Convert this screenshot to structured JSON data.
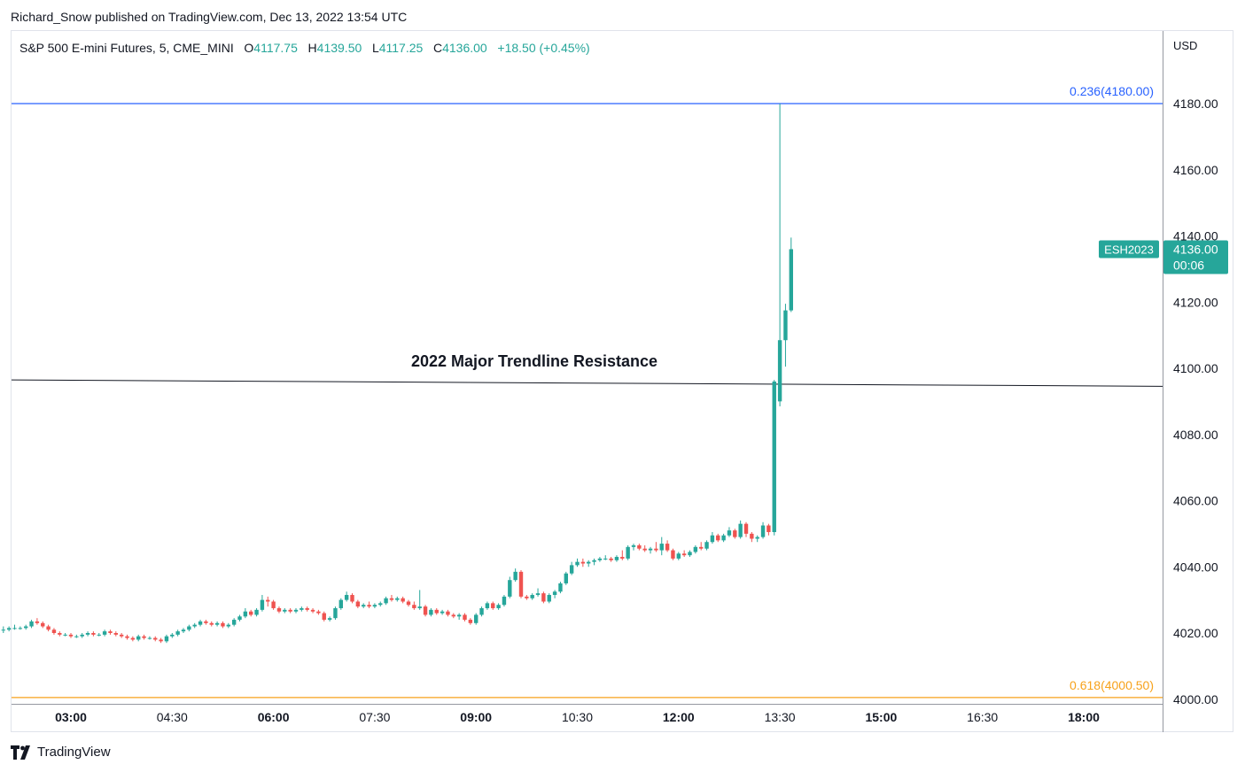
{
  "publish_line": "Richard_Snow published on TradingView.com, Dec 13, 2022 13:54 UTC",
  "legend": {
    "symbol": "S&P 500 E-mini Futures, 5, CME_MINI",
    "open_label": "O",
    "open": "4117.75",
    "high_label": "H",
    "high": "4139.50",
    "low_label": "L",
    "low": "4117.25",
    "close_label": "C",
    "close": "4136.00",
    "change": "+18.50 (+0.45%)"
  },
  "currency": "USD",
  "branding": "TradingView",
  "colors": {
    "up": "#26a69a",
    "down": "#ef5350",
    "fib_236": "#2962ff",
    "fib_618": "#f7a21b",
    "trendline": "#131722",
    "last_price_bg": "#26a69a"
  },
  "chart_data": {
    "type": "candlestick",
    "symbol": "ESH2023",
    "interval_minutes": 5,
    "y_axis": {
      "min": 4000,
      "max": 4180,
      "ticks": [
        4000,
        4020,
        4040,
        4060,
        4080,
        4100,
        4120,
        4140,
        4160,
        4180
      ],
      "tick_labels": [
        "4000.00",
        "4020.00",
        "4040.00",
        "4060.00",
        "4080.00",
        "4100.00",
        "4120.00",
        "4140.00",
        "4160.00",
        "4180.00"
      ]
    },
    "x_axis": {
      "tick_labels": [
        "03:00",
        "04:30",
        "06:00",
        "07:30",
        "09:00",
        "10:30",
        "12:00",
        "13:30",
        "15:00",
        "16:30",
        "18:00"
      ],
      "bold": [
        "03:00",
        "06:00",
        "09:00",
        "12:00",
        "15:00",
        "18:00"
      ]
    },
    "last_price": {
      "symbol": "ESH2023",
      "price": "4136.00",
      "countdown": "00:06",
      "value": 4136.0
    },
    "fib_levels": [
      {
        "label": "0.236(4180.00)",
        "value": 4180.0,
        "color": "#2962ff"
      },
      {
        "label": "0.618(4000.50)",
        "value": 4000.5,
        "color": "#f7a21b"
      }
    ],
    "trendline": {
      "label": "2022 Major Trendline Resistance",
      "start": [
        "02:00",
        4096.5
      ],
      "end": [
        "17:00",
        4094.8
      ]
    },
    "candles": [
      {
        "t": "02:00",
        "o": 4021.0,
        "h": 4022.0,
        "l": 4020.0,
        "c": 4021.0
      },
      {
        "t": "02:05",
        "o": 4021.0,
        "h": 4022.0,
        "l": 4020.5,
        "c": 4021.5
      },
      {
        "t": "02:10",
        "o": 4021.5,
        "h": 4022.5,
        "l": 4021.0,
        "c": 4021.5
      },
      {
        "t": "02:15",
        "o": 4021.5,
        "h": 4022.0,
        "l": 4021.0,
        "c": 4021.5
      },
      {
        "t": "02:20",
        "o": 4021.5,
        "h": 4022.5,
        "l": 4021.0,
        "c": 4022.0
      },
      {
        "t": "02:25",
        "o": 4022.0,
        "h": 4024.0,
        "l": 4021.5,
        "c": 4023.5
      },
      {
        "t": "02:30",
        "o": 4023.5,
        "h": 4024.5,
        "l": 4022.5,
        "c": 4023.0
      },
      {
        "t": "02:35",
        "o": 4023.0,
        "h": 4023.5,
        "l": 4021.5,
        "c": 4022.0
      },
      {
        "t": "02:40",
        "o": 4022.0,
        "h": 4022.5,
        "l": 4020.5,
        "c": 4021.0
      },
      {
        "t": "02:45",
        "o": 4021.0,
        "h": 4021.5,
        "l": 4019.5,
        "c": 4020.0
      },
      {
        "t": "02:50",
        "o": 4020.0,
        "h": 4020.5,
        "l": 4019.0,
        "c": 4019.5
      },
      {
        "t": "02:55",
        "o": 4019.5,
        "h": 4020.0,
        "l": 4019.0,
        "c": 4019.5
      },
      {
        "t": "03:00",
        "o": 4019.5,
        "h": 4020.0,
        "l": 4018.5,
        "c": 4019.0
      },
      {
        "t": "03:05",
        "o": 4019.0,
        "h": 4019.5,
        "l": 4018.5,
        "c": 4019.0
      },
      {
        "t": "03:10",
        "o": 4019.0,
        "h": 4020.0,
        "l": 4018.5,
        "c": 4019.5
      },
      {
        "t": "03:15",
        "o": 4019.5,
        "h": 4020.5,
        "l": 4019.0,
        "c": 4020.0
      },
      {
        "t": "03:20",
        "o": 4020.0,
        "h": 4020.5,
        "l": 4019.0,
        "c": 4019.5
      },
      {
        "t": "03:25",
        "o": 4019.5,
        "h": 4020.0,
        "l": 4019.0,
        "c": 4019.5
      },
      {
        "t": "03:30",
        "o": 4019.5,
        "h": 4021.0,
        "l": 4019.0,
        "c": 4020.5
      },
      {
        "t": "03:35",
        "o": 4020.5,
        "h": 4021.0,
        "l": 4019.5,
        "c": 4020.0
      },
      {
        "t": "03:40",
        "o": 4020.0,
        "h": 4020.5,
        "l": 4019.0,
        "c": 4019.5
      },
      {
        "t": "03:45",
        "o": 4019.5,
        "h": 4020.0,
        "l": 4018.5,
        "c": 4019.0
      },
      {
        "t": "03:50",
        "o": 4019.0,
        "h": 4019.5,
        "l": 4018.0,
        "c": 4018.5
      },
      {
        "t": "03:55",
        "o": 4018.5,
        "h": 4019.0,
        "l": 4017.5,
        "c": 4018.0
      },
      {
        "t": "04:00",
        "o": 4018.0,
        "h": 4019.5,
        "l": 4017.5,
        "c": 4019.0
      },
      {
        "t": "04:05",
        "o": 4019.0,
        "h": 4019.5,
        "l": 4018.0,
        "c": 4018.5
      },
      {
        "t": "04:10",
        "o": 4018.5,
        "h": 4019.0,
        "l": 4018.0,
        "c": 4018.5
      },
      {
        "t": "04:15",
        "o": 4018.5,
        "h": 4019.0,
        "l": 4017.5,
        "c": 4018.0
      },
      {
        "t": "04:20",
        "o": 4018.0,
        "h": 4018.5,
        "l": 4017.0,
        "c": 4017.5
      },
      {
        "t": "04:25",
        "o": 4017.5,
        "h": 4019.5,
        "l": 4017.0,
        "c": 4019.0
      },
      {
        "t": "04:30",
        "o": 4019.0,
        "h": 4020.0,
        "l": 4018.5,
        "c": 4019.5
      },
      {
        "t": "04:35",
        "o": 4019.5,
        "h": 4021.0,
        "l": 4019.0,
        "c": 4020.5
      },
      {
        "t": "04:40",
        "o": 4020.5,
        "h": 4021.5,
        "l": 4020.0,
        "c": 4021.0
      },
      {
        "t": "04:45",
        "o": 4021.0,
        "h": 4022.5,
        "l": 4020.5,
        "c": 4022.0
      },
      {
        "t": "04:50",
        "o": 4022.0,
        "h": 4023.0,
        "l": 4021.5,
        "c": 4022.5
      },
      {
        "t": "04:55",
        "o": 4022.5,
        "h": 4024.0,
        "l": 4022.0,
        "c": 4023.5
      },
      {
        "t": "05:00",
        "o": 4023.5,
        "h": 4024.0,
        "l": 4022.5,
        "c": 4023.0
      },
      {
        "t": "05:05",
        "o": 4023.0,
        "h": 4023.5,
        "l": 4022.0,
        "c": 4022.5
      },
      {
        "t": "05:10",
        "o": 4022.5,
        "h": 4023.5,
        "l": 4022.0,
        "c": 4023.0
      },
      {
        "t": "05:15",
        "o": 4023.0,
        "h": 4023.5,
        "l": 4021.5,
        "c": 4022.0
      },
      {
        "t": "05:20",
        "o": 4022.0,
        "h": 4023.0,
        "l": 4021.5,
        "c": 4022.5
      },
      {
        "t": "05:25",
        "o": 4022.5,
        "h": 4024.5,
        "l": 4022.0,
        "c": 4024.0
      },
      {
        "t": "05:30",
        "o": 4024.0,
        "h": 4025.5,
        "l": 4023.5,
        "c": 4025.0
      },
      {
        "t": "05:35",
        "o": 4025.0,
        "h": 4027.5,
        "l": 4024.5,
        "c": 4026.5
      },
      {
        "t": "05:40",
        "o": 4026.5,
        "h": 4027.0,
        "l": 4025.0,
        "c": 4025.5
      },
      {
        "t": "05:45",
        "o": 4025.5,
        "h": 4027.5,
        "l": 4025.0,
        "c": 4027.0
      },
      {
        "t": "05:50",
        "o": 4027.0,
        "h": 4031.5,
        "l": 4026.5,
        "c": 4030.0
      },
      {
        "t": "05:55",
        "o": 4030.0,
        "h": 4031.0,
        "l": 4028.0,
        "c": 4029.5
      },
      {
        "t": "06:00",
        "o": 4029.5,
        "h": 4030.0,
        "l": 4027.0,
        "c": 4027.5
      },
      {
        "t": "06:05",
        "o": 4027.5,
        "h": 4028.0,
        "l": 4026.0,
        "c": 4026.5
      },
      {
        "t": "06:10",
        "o": 4026.5,
        "h": 4027.5,
        "l": 4026.0,
        "c": 4027.0
      },
      {
        "t": "06:15",
        "o": 4027.0,
        "h": 4027.5,
        "l": 4026.0,
        "c": 4026.5
      },
      {
        "t": "06:20",
        "o": 4026.5,
        "h": 4027.5,
        "l": 4026.0,
        "c": 4027.0
      },
      {
        "t": "06:25",
        "o": 4027.0,
        "h": 4028.0,
        "l": 4026.5,
        "c": 4027.5
      },
      {
        "t": "06:30",
        "o": 4027.5,
        "h": 4028.0,
        "l": 4026.5,
        "c": 4027.0
      },
      {
        "t": "06:35",
        "o": 4027.0,
        "h": 4027.5,
        "l": 4026.0,
        "c": 4026.5
      },
      {
        "t": "06:40",
        "o": 4026.5,
        "h": 4027.0,
        "l": 4025.5,
        "c": 4026.0
      },
      {
        "t": "06:45",
        "o": 4026.0,
        "h": 4026.5,
        "l": 4023.5,
        "c": 4024.0
      },
      {
        "t": "06:50",
        "o": 4024.0,
        "h": 4025.0,
        "l": 4023.5,
        "c": 4024.5
      },
      {
        "t": "06:55",
        "o": 4024.5,
        "h": 4028.0,
        "l": 4024.0,
        "c": 4027.5
      },
      {
        "t": "07:00",
        "o": 4027.5,
        "h": 4030.5,
        "l": 4027.0,
        "c": 4030.0
      },
      {
        "t": "07:05",
        "o": 4030.0,
        "h": 4032.5,
        "l": 4029.5,
        "c": 4031.5
      },
      {
        "t": "07:10",
        "o": 4031.5,
        "h": 4032.0,
        "l": 4029.0,
        "c": 4029.5
      },
      {
        "t": "07:15",
        "o": 4029.5,
        "h": 4030.0,
        "l": 4027.5,
        "c": 4028.0
      },
      {
        "t": "07:20",
        "o": 4028.0,
        "h": 4029.0,
        "l": 4027.5,
        "c": 4028.5
      },
      {
        "t": "07:25",
        "o": 4028.5,
        "h": 4029.5,
        "l": 4027.5,
        "c": 4028.0
      },
      {
        "t": "07:30",
        "o": 4028.0,
        "h": 4029.0,
        "l": 4027.5,
        "c": 4028.5
      },
      {
        "t": "07:35",
        "o": 4028.5,
        "h": 4029.5,
        "l": 4028.0,
        "c": 4029.0
      },
      {
        "t": "07:40",
        "o": 4029.0,
        "h": 4031.0,
        "l": 4028.5,
        "c": 4030.5
      },
      {
        "t": "07:45",
        "o": 4030.5,
        "h": 4031.5,
        "l": 4029.5,
        "c": 4030.0
      },
      {
        "t": "07:50",
        "o": 4030.0,
        "h": 4031.0,
        "l": 4029.5,
        "c": 4030.5
      },
      {
        "t": "07:55",
        "o": 4030.5,
        "h": 4031.0,
        "l": 4029.0,
        "c": 4029.5
      },
      {
        "t": "08:00",
        "o": 4029.5,
        "h": 4030.0,
        "l": 4028.0,
        "c": 4028.5
      },
      {
        "t": "08:05",
        "o": 4028.5,
        "h": 4029.5,
        "l": 4027.0,
        "c": 4027.5
      },
      {
        "t": "08:10",
        "o": 4027.5,
        "h": 4033.0,
        "l": 4027.0,
        "c": 4028.0
      },
      {
        "t": "08:15",
        "o": 4028.0,
        "h": 4028.5,
        "l": 4025.0,
        "c": 4025.5
      },
      {
        "t": "08:20",
        "o": 4025.5,
        "h": 4027.5,
        "l": 4025.0,
        "c": 4027.0
      },
      {
        "t": "08:25",
        "o": 4027.0,
        "h": 4027.5,
        "l": 4025.5,
        "c": 4026.0
      },
      {
        "t": "08:30",
        "o": 4026.0,
        "h": 4027.0,
        "l": 4025.5,
        "c": 4026.5
      },
      {
        "t": "08:35",
        "o": 4026.5,
        "h": 4027.0,
        "l": 4025.0,
        "c": 4025.5
      },
      {
        "t": "08:40",
        "o": 4025.5,
        "h": 4026.0,
        "l": 4024.5,
        "c": 4025.0
      },
      {
        "t": "08:45",
        "o": 4025.0,
        "h": 4026.0,
        "l": 4024.0,
        "c": 4025.5
      },
      {
        "t": "08:50",
        "o": 4025.5,
        "h": 4026.0,
        "l": 4023.5,
        "c": 4024.0
      },
      {
        "t": "08:55",
        "o": 4024.0,
        "h": 4024.5,
        "l": 4022.5,
        "c": 4023.0
      },
      {
        "t": "09:00",
        "o": 4023.0,
        "h": 4026.0,
        "l": 4022.5,
        "c": 4025.5
      },
      {
        "t": "09:05",
        "o": 4025.5,
        "h": 4028.0,
        "l": 4025.0,
        "c": 4027.5
      },
      {
        "t": "09:10",
        "o": 4027.5,
        "h": 4029.5,
        "l": 4027.0,
        "c": 4029.0
      },
      {
        "t": "09:15",
        "o": 4029.0,
        "h": 4029.5,
        "l": 4027.0,
        "c": 4027.5
      },
      {
        "t": "09:20",
        "o": 4027.5,
        "h": 4029.0,
        "l": 4027.0,
        "c": 4028.5
      },
      {
        "t": "09:25",
        "o": 4028.5,
        "h": 4031.5,
        "l": 4028.0,
        "c": 4031.0
      },
      {
        "t": "09:30",
        "o": 4031.0,
        "h": 4037.0,
        "l": 4030.5,
        "c": 4036.0
      },
      {
        "t": "09:35",
        "o": 4036.0,
        "h": 4039.5,
        "l": 4035.5,
        "c": 4038.5
      },
      {
        "t": "09:40",
        "o": 4038.5,
        "h": 4039.0,
        "l": 4030.5,
        "c": 4031.0
      },
      {
        "t": "09:45",
        "o": 4031.0,
        "h": 4031.5,
        "l": 4030.0,
        "c": 4030.5
      },
      {
        "t": "09:50",
        "o": 4030.5,
        "h": 4032.0,
        "l": 4030.0,
        "c": 4031.5
      },
      {
        "t": "09:55",
        "o": 4031.5,
        "h": 4033.5,
        "l": 4031.0,
        "c": 4032.0
      },
      {
        "t": "10:00",
        "o": 4032.0,
        "h": 4032.5,
        "l": 4029.0,
        "c": 4029.5
      },
      {
        "t": "10:05",
        "o": 4029.5,
        "h": 4032.0,
        "l": 4029.0,
        "c": 4031.5
      },
      {
        "t": "10:10",
        "o": 4031.5,
        "h": 4033.0,
        "l": 4030.5,
        "c": 4032.5
      },
      {
        "t": "10:15",
        "o": 4032.5,
        "h": 4035.5,
        "l": 4032.0,
        "c": 4035.0
      },
      {
        "t": "10:20",
        "o": 4035.0,
        "h": 4038.5,
        "l": 4034.5,
        "c": 4038.0
      },
      {
        "t": "10:25",
        "o": 4038.0,
        "h": 4041.5,
        "l": 4037.5,
        "c": 4040.5
      },
      {
        "t": "10:30",
        "o": 4040.5,
        "h": 4042.5,
        "l": 4040.0,
        "c": 4041.5
      },
      {
        "t": "10:35",
        "o": 4041.5,
        "h": 4042.5,
        "l": 4040.0,
        "c": 4041.0
      },
      {
        "t": "10:40",
        "o": 4041.0,
        "h": 4042.0,
        "l": 4040.0,
        "c": 4041.5
      },
      {
        "t": "10:45",
        "o": 4041.5,
        "h": 4042.5,
        "l": 4040.5,
        "c": 4042.0
      },
      {
        "t": "10:50",
        "o": 4042.0,
        "h": 4043.0,
        "l": 4041.5,
        "c": 4042.5
      },
      {
        "t": "10:55",
        "o": 4042.5,
        "h": 4043.5,
        "l": 4042.0,
        "c": 4042.5
      },
      {
        "t": "11:00",
        "o": 4042.5,
        "h": 4043.0,
        "l": 4041.5,
        "c": 4042.0
      },
      {
        "t": "11:05",
        "o": 4042.0,
        "h": 4043.5,
        "l": 4041.5,
        "c": 4043.0
      },
      {
        "t": "11:10",
        "o": 4043.0,
        "h": 4045.0,
        "l": 4042.0,
        "c": 4042.5
      },
      {
        "t": "11:15",
        "o": 4042.5,
        "h": 4046.5,
        "l": 4042.0,
        "c": 4046.0
      },
      {
        "t": "11:20",
        "o": 4046.0,
        "h": 4047.0,
        "l": 4045.0,
        "c": 4046.5
      },
      {
        "t": "11:25",
        "o": 4046.5,
        "h": 4047.0,
        "l": 4045.0,
        "c": 4045.5
      },
      {
        "t": "11:30",
        "o": 4045.5,
        "h": 4046.5,
        "l": 4044.5,
        "c": 4045.0
      },
      {
        "t": "11:35",
        "o": 4045.0,
        "h": 4046.0,
        "l": 4044.0,
        "c": 4045.5
      },
      {
        "t": "11:40",
        "o": 4045.5,
        "h": 4047.5,
        "l": 4044.5,
        "c": 4045.0
      },
      {
        "t": "11:45",
        "o": 4045.0,
        "h": 4049.0,
        "l": 4043.5,
        "c": 4047.0
      },
      {
        "t": "11:50",
        "o": 4047.0,
        "h": 4048.0,
        "l": 4044.5,
        "c": 4045.0
      },
      {
        "t": "11:55",
        "o": 4045.0,
        "h": 4045.5,
        "l": 4042.0,
        "c": 4042.5
      },
      {
        "t": "12:00",
        "o": 4042.5,
        "h": 4044.5,
        "l": 4042.0,
        "c": 4044.0
      },
      {
        "t": "12:05",
        "o": 4044.0,
        "h": 4045.0,
        "l": 4043.0,
        "c": 4043.5
      },
      {
        "t": "12:10",
        "o": 4043.5,
        "h": 4045.0,
        "l": 4043.0,
        "c": 4044.5
      },
      {
        "t": "12:15",
        "o": 4044.5,
        "h": 4046.5,
        "l": 4044.0,
        "c": 4046.0
      },
      {
        "t": "12:20",
        "o": 4046.0,
        "h": 4047.5,
        "l": 4045.0,
        "c": 4045.5
      },
      {
        "t": "12:25",
        "o": 4045.5,
        "h": 4048.0,
        "l": 4045.0,
        "c": 4047.5
      },
      {
        "t": "12:30",
        "o": 4047.5,
        "h": 4050.5,
        "l": 4047.0,
        "c": 4049.5
      },
      {
        "t": "12:35",
        "o": 4049.5,
        "h": 4050.0,
        "l": 4047.5,
        "c": 4048.0
      },
      {
        "t": "12:40",
        "o": 4048.0,
        "h": 4050.0,
        "l": 4047.5,
        "c": 4049.5
      },
      {
        "t": "12:45",
        "o": 4049.5,
        "h": 4052.0,
        "l": 4049.0,
        "c": 4051.0
      },
      {
        "t": "12:50",
        "o": 4051.0,
        "h": 4051.5,
        "l": 4048.5,
        "c": 4049.0
      },
      {
        "t": "12:55",
        "o": 4049.0,
        "h": 4054.0,
        "l": 4048.5,
        "c": 4053.0
      },
      {
        "t": "13:00",
        "o": 4053.0,
        "h": 4053.5,
        "l": 4049.0,
        "c": 4050.0
      },
      {
        "t": "13:05",
        "o": 4050.0,
        "h": 4050.5,
        "l": 4047.5,
        "c": 4048.5
      },
      {
        "t": "13:10",
        "o": 4048.5,
        "h": 4049.5,
        "l": 4047.5,
        "c": 4049.0
      },
      {
        "t": "13:15",
        "o": 4049.0,
        "h": 4053.5,
        "l": 4048.5,
        "c": 4052.5
      },
      {
        "t": "13:20",
        "o": 4052.5,
        "h": 4053.0,
        "l": 4049.5,
        "c": 4050.5
      },
      {
        "t": "13:25",
        "o": 4050.5,
        "h": 4096.5,
        "l": 4049.5,
        "c": 4096.0
      },
      {
        "t": "13:30",
        "o": 4090.0,
        "h": 4180.0,
        "l": 4088.5,
        "c": 4108.5
      },
      {
        "t": "13:35",
        "o": 4108.5,
        "h": 4119.5,
        "l": 4100.5,
        "c": 4117.5
      },
      {
        "t": "13:40",
        "o": 4117.5,
        "h": 4139.5,
        "l": 4117.0,
        "c": 4136.0
      }
    ]
  }
}
